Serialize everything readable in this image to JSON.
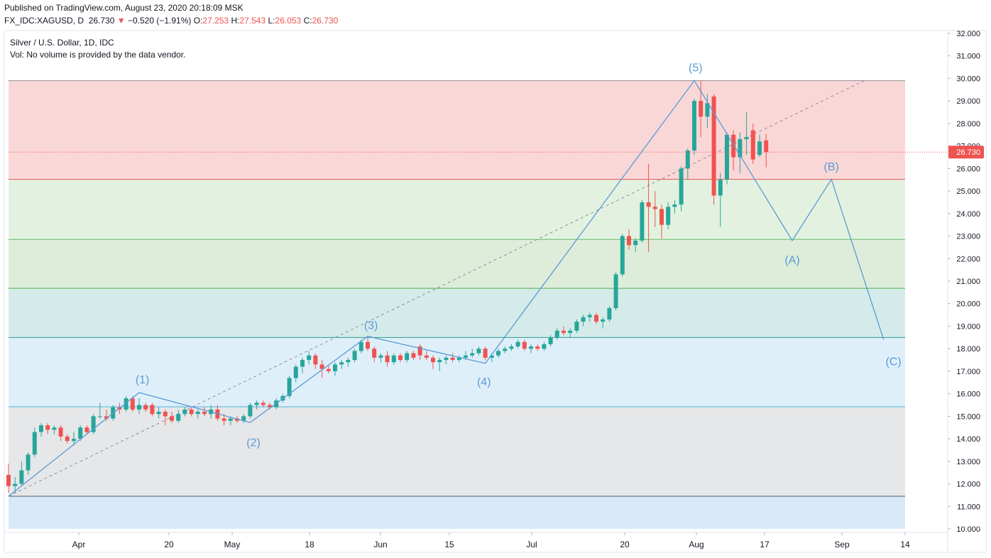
{
  "header": {
    "published": "Published on TradingView.com, August 23, 2020 20:18:09 MSK",
    "symbol": "FX_IDC:XAGUSD, D",
    "last": "26.730",
    "change": "−0.520 (−1.91%)",
    "o_label": "O:",
    "o_value": "27.253",
    "h_label": "H:",
    "h_value": "27.543",
    "l_label": "L:",
    "l_value": "26.053",
    "c_label": "C:",
    "c_value": "26.730"
  },
  "legend": {
    "title": "Silver / U.S. Dollar, 1D, IDC",
    "volume_note": "Vol: No volume is provided by the data vendor."
  },
  "colors": {
    "up": "#26a69a",
    "down": "#ef5350",
    "wave": "#5b9bd5",
    "price_tag": "#ef5350"
  },
  "chart_data": {
    "type": "candlestick",
    "y_axis_ticks": [
      "32.000",
      "31.000",
      "30.000",
      "29.000",
      "28.000",
      "27.000",
      "26.000",
      "25.000",
      "24.000",
      "23.000",
      "22.000",
      "21.000",
      "20.000",
      "19.000",
      "18.000",
      "17.000",
      "16.000",
      "15.000",
      "14.000",
      "13.000",
      "12.000",
      "11.000",
      "10.000"
    ],
    "x_axis_ticks": [
      "Apr",
      "20",
      "May",
      "18",
      "Jun",
      "15",
      "Jul",
      "20",
      "Aug",
      "17",
      "Sep",
      "14"
    ],
    "ylim": [
      10,
      32
    ],
    "last_price_label": "26.730",
    "candles": [
      {
        "o": 12.4,
        "h": 12.9,
        "l": 11.6,
        "c": 11.9
      },
      {
        "o": 11.9,
        "h": 12.3,
        "l": 11.6,
        "c": 12.0
      },
      {
        "o": 12.0,
        "h": 13.0,
        "l": 11.9,
        "c": 12.6
      },
      {
        "o": 12.6,
        "h": 13.4,
        "l": 12.4,
        "c": 13.3
      },
      {
        "o": 13.3,
        "h": 14.5,
        "l": 13.2,
        "c": 14.3
      },
      {
        "o": 14.3,
        "h": 14.7,
        "l": 14.1,
        "c": 14.6
      },
      {
        "o": 14.6,
        "h": 14.7,
        "l": 14.2,
        "c": 14.4
      },
      {
        "o": 14.4,
        "h": 14.6,
        "l": 14.2,
        "c": 14.5
      },
      {
        "o": 14.5,
        "h": 14.6,
        "l": 13.9,
        "c": 14.1
      },
      {
        "o": 14.1,
        "h": 14.2,
        "l": 13.8,
        "c": 13.9
      },
      {
        "o": 13.9,
        "h": 14.3,
        "l": 13.7,
        "c": 14.0
      },
      {
        "o": 14.0,
        "h": 14.6,
        "l": 13.9,
        "c": 14.5
      },
      {
        "o": 14.5,
        "h": 14.6,
        "l": 14.2,
        "c": 14.3
      },
      {
        "o": 14.3,
        "h": 15.1,
        "l": 14.2,
        "c": 15.0
      },
      {
        "o": 15.0,
        "h": 15.6,
        "l": 14.9,
        "c": 15.0
      },
      {
        "o": 15.0,
        "h": 15.3,
        "l": 14.8,
        "c": 14.9
      },
      {
        "o": 14.9,
        "h": 15.5,
        "l": 14.8,
        "c": 15.4
      },
      {
        "o": 15.4,
        "h": 15.6,
        "l": 15.1,
        "c": 15.3
      },
      {
        "o": 15.3,
        "h": 15.9,
        "l": 15.2,
        "c": 15.8
      },
      {
        "o": 15.8,
        "h": 15.9,
        "l": 15.2,
        "c": 15.3
      },
      {
        "o": 15.3,
        "h": 15.8,
        "l": 15.1,
        "c": 15.5
      },
      {
        "o": 15.5,
        "h": 15.6,
        "l": 15.2,
        "c": 15.3
      },
      {
        "o": 15.5,
        "h": 15.6,
        "l": 15.0,
        "c": 15.1
      },
      {
        "o": 15.1,
        "h": 15.4,
        "l": 14.9,
        "c": 15.2
      },
      {
        "o": 15.2,
        "h": 15.3,
        "l": 14.6,
        "c": 15.0
      },
      {
        "o": 15.0,
        "h": 15.2,
        "l": 14.7,
        "c": 14.8
      },
      {
        "o": 14.8,
        "h": 15.3,
        "l": 14.7,
        "c": 15.1
      },
      {
        "o": 15.1,
        "h": 15.4,
        "l": 15.0,
        "c": 15.3
      },
      {
        "o": 15.3,
        "h": 15.4,
        "l": 15.0,
        "c": 15.1
      },
      {
        "o": 15.1,
        "h": 15.3,
        "l": 14.9,
        "c": 15.2
      },
      {
        "o": 15.2,
        "h": 15.4,
        "l": 15.0,
        "c": 15.1
      },
      {
        "o": 15.1,
        "h": 15.5,
        "l": 14.9,
        "c": 15.3
      },
      {
        "o": 15.3,
        "h": 15.5,
        "l": 14.8,
        "c": 14.9
      },
      {
        "o": 14.9,
        "h": 15.1,
        "l": 14.6,
        "c": 14.8
      },
      {
        "o": 14.8,
        "h": 15.0,
        "l": 14.6,
        "c": 14.9
      },
      {
        "o": 14.9,
        "h": 15.0,
        "l": 14.7,
        "c": 14.8
      },
      {
        "o": 14.8,
        "h": 15.1,
        "l": 14.7,
        "c": 15.0
      },
      {
        "o": 15.0,
        "h": 15.6,
        "l": 14.9,
        "c": 15.5
      },
      {
        "o": 15.5,
        "h": 15.7,
        "l": 15.3,
        "c": 15.6
      },
      {
        "o": 15.6,
        "h": 15.7,
        "l": 15.4,
        "c": 15.5
      },
      {
        "o": 15.5,
        "h": 15.6,
        "l": 15.3,
        "c": 15.4
      },
      {
        "o": 15.4,
        "h": 15.8,
        "l": 15.3,
        "c": 15.7
      },
      {
        "o": 15.7,
        "h": 16.0,
        "l": 15.6,
        "c": 15.9
      },
      {
        "o": 15.9,
        "h": 16.8,
        "l": 15.8,
        "c": 16.7
      },
      {
        "o": 16.7,
        "h": 17.3,
        "l": 16.5,
        "c": 17.2
      },
      {
        "o": 17.2,
        "h": 17.6,
        "l": 16.9,
        "c": 17.5
      },
      {
        "o": 17.5,
        "h": 17.9,
        "l": 17.3,
        "c": 17.7
      },
      {
        "o": 17.7,
        "h": 17.8,
        "l": 17.1,
        "c": 17.3
      },
      {
        "o": 17.3,
        "h": 17.5,
        "l": 16.7,
        "c": 17.1
      },
      {
        "o": 17.1,
        "h": 17.3,
        "l": 16.9,
        "c": 17.0
      },
      {
        "o": 17.0,
        "h": 17.4,
        "l": 16.8,
        "c": 17.3
      },
      {
        "o": 17.3,
        "h": 17.5,
        "l": 17.1,
        "c": 17.4
      },
      {
        "o": 17.4,
        "h": 17.6,
        "l": 17.2,
        "c": 17.5
      },
      {
        "o": 17.5,
        "h": 18.0,
        "l": 17.4,
        "c": 17.9
      },
      {
        "o": 17.9,
        "h": 18.4,
        "l": 17.8,
        "c": 18.3
      },
      {
        "o": 18.3,
        "h": 18.5,
        "l": 17.9,
        "c": 18.0
      },
      {
        "o": 18.0,
        "h": 18.1,
        "l": 17.4,
        "c": 17.6
      },
      {
        "o": 17.6,
        "h": 17.8,
        "l": 17.4,
        "c": 17.7
      },
      {
        "o": 17.7,
        "h": 17.9,
        "l": 17.2,
        "c": 17.4
      },
      {
        "o": 17.4,
        "h": 17.8,
        "l": 17.3,
        "c": 17.7
      },
      {
        "o": 17.7,
        "h": 17.8,
        "l": 17.4,
        "c": 17.5
      },
      {
        "o": 17.5,
        "h": 17.9,
        "l": 17.4,
        "c": 17.8
      },
      {
        "o": 17.8,
        "h": 17.9,
        "l": 17.5,
        "c": 17.6
      },
      {
        "o": 18.1,
        "h": 18.2,
        "l": 17.5,
        "c": 17.7
      },
      {
        "o": 17.7,
        "h": 17.9,
        "l": 17.5,
        "c": 17.6
      },
      {
        "o": 17.6,
        "h": 17.7,
        "l": 17.1,
        "c": 17.4
      },
      {
        "o": 17.4,
        "h": 17.6,
        "l": 17.0,
        "c": 17.5
      },
      {
        "o": 17.5,
        "h": 17.7,
        "l": 17.3,
        "c": 17.6
      },
      {
        "o": 17.6,
        "h": 17.8,
        "l": 17.4,
        "c": 17.5
      },
      {
        "o": 17.5,
        "h": 17.7,
        "l": 17.4,
        "c": 17.6
      },
      {
        "o": 17.6,
        "h": 17.9,
        "l": 17.5,
        "c": 17.7
      },
      {
        "o": 17.7,
        "h": 18.0,
        "l": 17.6,
        "c": 17.8
      },
      {
        "o": 17.8,
        "h": 18.1,
        "l": 17.7,
        "c": 18.0
      },
      {
        "o": 18.0,
        "h": 18.1,
        "l": 17.5,
        "c": 17.6
      },
      {
        "o": 17.6,
        "h": 17.8,
        "l": 17.4,
        "c": 17.7
      },
      {
        "o": 17.7,
        "h": 18.0,
        "l": 17.6,
        "c": 17.9
      },
      {
        "o": 17.9,
        "h": 18.1,
        "l": 17.8,
        "c": 18.0
      },
      {
        "o": 18.0,
        "h": 18.2,
        "l": 17.9,
        "c": 18.1
      },
      {
        "o": 18.1,
        "h": 18.4,
        "l": 18.0,
        "c": 18.3
      },
      {
        "o": 18.3,
        "h": 18.4,
        "l": 17.9,
        "c": 18.0
      },
      {
        "o": 18.0,
        "h": 18.2,
        "l": 17.8,
        "c": 18.1
      },
      {
        "o": 18.1,
        "h": 18.2,
        "l": 17.9,
        "c": 18.0
      },
      {
        "o": 18.0,
        "h": 18.3,
        "l": 17.9,
        "c": 18.2
      },
      {
        "o": 18.2,
        "h": 18.6,
        "l": 18.1,
        "c": 18.5
      },
      {
        "o": 18.5,
        "h": 18.9,
        "l": 18.4,
        "c": 18.8
      },
      {
        "o": 18.8,
        "h": 19.0,
        "l": 18.6,
        "c": 18.7
      },
      {
        "o": 18.7,
        "h": 18.9,
        "l": 18.5,
        "c": 18.8
      },
      {
        "o": 18.8,
        "h": 19.3,
        "l": 18.7,
        "c": 19.2
      },
      {
        "o": 19.2,
        "h": 19.5,
        "l": 19.0,
        "c": 19.4
      },
      {
        "o": 19.4,
        "h": 19.6,
        "l": 19.2,
        "c": 19.5
      },
      {
        "o": 19.5,
        "h": 19.6,
        "l": 19.1,
        "c": 19.2
      },
      {
        "o": 19.2,
        "h": 19.4,
        "l": 18.9,
        "c": 19.3
      },
      {
        "o": 19.3,
        "h": 19.9,
        "l": 19.2,
        "c": 19.8
      },
      {
        "o": 19.8,
        "h": 21.4,
        "l": 19.7,
        "c": 21.3
      },
      {
        "o": 21.3,
        "h": 23.1,
        "l": 21.2,
        "c": 23.0
      },
      {
        "o": 23.0,
        "h": 23.3,
        "l": 22.4,
        "c": 22.6
      },
      {
        "o": 22.6,
        "h": 22.9,
        "l": 22.3,
        "c": 22.8
      },
      {
        "o": 22.8,
        "h": 24.6,
        "l": 22.7,
        "c": 24.5
      },
      {
        "o": 24.5,
        "h": 26.2,
        "l": 22.3,
        "c": 24.3
      },
      {
        "o": 24.3,
        "h": 25.0,
        "l": 23.4,
        "c": 24.2
      },
      {
        "o": 24.2,
        "h": 24.4,
        "l": 22.9,
        "c": 23.5
      },
      {
        "o": 23.5,
        "h": 24.5,
        "l": 23.3,
        "c": 24.3
      },
      {
        "o": 24.3,
        "h": 24.6,
        "l": 24.0,
        "c": 24.4
      },
      {
        "o": 24.4,
        "h": 26.1,
        "l": 24.1,
        "c": 26.0
      },
      {
        "o": 26.0,
        "h": 26.9,
        "l": 25.5,
        "c": 26.8
      },
      {
        "o": 26.8,
        "h": 29.1,
        "l": 26.6,
        "c": 29.0
      },
      {
        "o": 29.0,
        "h": 29.9,
        "l": 27.4,
        "c": 28.3
      },
      {
        "o": 28.3,
        "h": 29.3,
        "l": 27.8,
        "c": 28.9
      },
      {
        "o": 29.2,
        "h": 29.3,
        "l": 24.4,
        "c": 24.8
      },
      {
        "o": 24.8,
        "h": 25.8,
        "l": 23.4,
        "c": 25.5
      },
      {
        "o": 25.5,
        "h": 27.6,
        "l": 25.3,
        "c": 27.5
      },
      {
        "o": 27.5,
        "h": 27.7,
        "l": 25.9,
        "c": 26.5
      },
      {
        "o": 26.5,
        "h": 27.6,
        "l": 25.8,
        "c": 27.3
      },
      {
        "o": 27.3,
        "h": 28.5,
        "l": 26.6,
        "c": 27.4
      },
      {
        "o": 27.7,
        "h": 28.0,
        "l": 26.2,
        "c": 26.4
      },
      {
        "o": 26.6,
        "h": 27.5,
        "l": 26.5,
        "c": 27.2
      },
      {
        "o": 27.25,
        "h": 27.54,
        "l": 26.05,
        "c": 26.73
      }
    ],
    "fib_levels": [
      11.45,
      15.42,
      18.5,
      20.68,
      22.85,
      25.52,
      29.9
    ],
    "fib_zones": [
      {
        "from": 29.9,
        "to": 25.52,
        "color": "#f8c6c6"
      },
      {
        "from": 25.52,
        "to": 22.85,
        "color": "#d7ecd3"
      },
      {
        "from": 22.85,
        "to": 20.68,
        "color": "#cfe6cb"
      },
      {
        "from": 20.68,
        "to": 18.5,
        "color": "#c3e3e1"
      },
      {
        "from": 18.5,
        "to": 15.42,
        "color": "#d1e8f8"
      },
      {
        "from": 15.42,
        "to": 11.45,
        "color": "#dcdddf"
      },
      {
        "from": 11.45,
        "to": 10.0,
        "color": "#c6e0f7"
      }
    ],
    "trendline": {
      "from": {
        "t": 0,
        "p": 11.45
      },
      "to": {
        "t": 131,
        "p": 29.9
      }
    },
    "wave_path": [
      {
        "t": 0,
        "p": 11.45
      },
      {
        "t": 20,
        "p": 16.05
      },
      {
        "t": 37,
        "p": 14.72
      },
      {
        "t": 55,
        "p": 18.55
      },
      {
        "t": 73,
        "p": 17.35
      },
      {
        "t": 105,
        "p": 29.9
      },
      {
        "t": 120,
        "p": 22.8
      },
      {
        "t": 126,
        "p": 25.52
      },
      {
        "t": 134,
        "p": 18.4
      }
    ],
    "wave_labels": [
      {
        "text": "(1)",
        "t": 20.5,
        "p": 16.6
      },
      {
        "text": "(2)",
        "t": 37.5,
        "p": 13.8
      },
      {
        "text": "(3)",
        "t": 55.5,
        "p": 19.0
      },
      {
        "text": "(4)",
        "t": 72.8,
        "p": 16.5
      },
      {
        "text": "(5)",
        "t": 105.2,
        "p": 30.45
      },
      {
        "text": "(A)",
        "t": 120,
        "p": 21.9
      },
      {
        "text": "(B)",
        "t": 126,
        "p": 26.05
      },
      {
        "text": "(C)",
        "t": 135.5,
        "p": 17.4
      }
    ]
  }
}
